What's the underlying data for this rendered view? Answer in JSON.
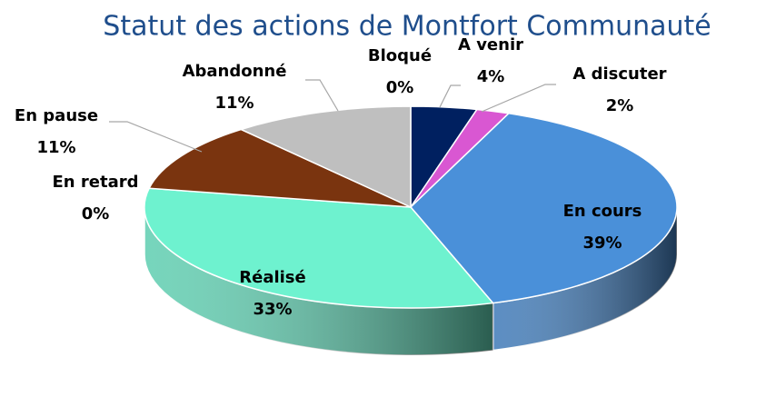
{
  "chart_data": {
    "type": "pie",
    "title": "Statut des actions de Montfort Communauté",
    "categories": [
      "A venir",
      "A discuter",
      "En cours",
      "Réalisé",
      "En retard",
      "En pause",
      "Abandonné",
      "Bloqué"
    ],
    "values": [
      4,
      2,
      39,
      33,
      0,
      11,
      11,
      0
    ],
    "value_labels": [
      "4%",
      "2%",
      "39%",
      "33%",
      "0%",
      "11%",
      "11%",
      "0%"
    ],
    "colors": [
      "#002060",
      "#d957d2",
      "#4a90d9",
      "#6ef2cf",
      "#e07b39",
      "#7a340f",
      "#bfbfbf",
      "#ffc000"
    ]
  }
}
